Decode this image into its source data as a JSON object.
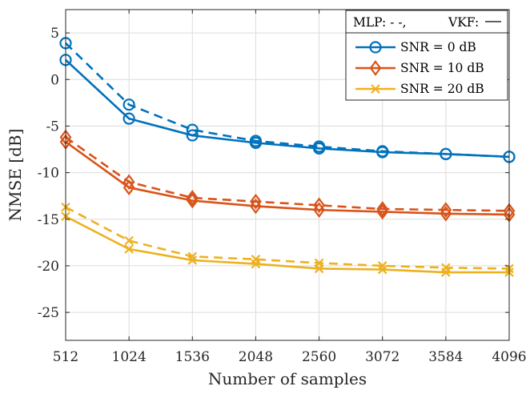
{
  "chart_data": {
    "type": "line",
    "xlabel": "Number of samples",
    "ylabel": "NMSE [dB]",
    "x": [
      512,
      1024,
      1536,
      2048,
      2560,
      3072,
      3584,
      4096
    ],
    "x_tick_labels": [
      "512",
      "1024",
      "1536",
      "2048",
      "2560",
      "3072",
      "3584",
      "4096"
    ],
    "y_ticks": [
      5,
      0,
      -5,
      -10,
      -15,
      -20,
      -25
    ],
    "y_tick_labels": [
      "5",
      "0",
      "-5",
      "-10",
      "-15",
      "-20",
      "-25"
    ],
    "xlim": [
      512,
      4096
    ],
    "ylim": [
      -28,
      7.5
    ],
    "grid": true,
    "legend": {
      "placement": "top-right",
      "header_mlp": "MLP: - -,",
      "header_vkf": "VKF:",
      "entries": [
        "SNR = 0 dB",
        "SNR = 10 dB",
        "SNR = 20 dB"
      ]
    },
    "series": [
      {
        "name": "SNR = 0 dB",
        "method": "MLP",
        "style": "dashed",
        "marker": "circle",
        "color": "#0072BD",
        "values": [
          3.9,
          -2.7,
          -5.4,
          -6.6,
          -7.2,
          -7.7,
          -8.0,
          -8.3
        ]
      },
      {
        "name": "SNR = 0 dB",
        "method": "VKF",
        "style": "solid",
        "marker": "circle",
        "color": "#0072BD",
        "values": [
          2.1,
          -4.2,
          -6.0,
          -6.8,
          -7.4,
          -7.8,
          -8.0,
          -8.3
        ]
      },
      {
        "name": "SNR = 10 dB",
        "method": "MLP",
        "style": "dashed",
        "marker": "diamond",
        "color": "#D95319",
        "values": [
          -6.2,
          -11.0,
          -12.7,
          -13.1,
          -13.5,
          -13.9,
          -14.0,
          -14.1
        ]
      },
      {
        "name": "SNR = 10 dB",
        "method": "VKF",
        "style": "solid",
        "marker": "diamond",
        "color": "#D95319",
        "values": [
          -6.7,
          -11.6,
          -13.0,
          -13.6,
          -14.0,
          -14.2,
          -14.4,
          -14.5
        ]
      },
      {
        "name": "SNR = 20 dB",
        "method": "MLP",
        "style": "dashed",
        "marker": "x",
        "color": "#EDB120",
        "values": [
          -13.7,
          -17.3,
          -19.0,
          -19.3,
          -19.7,
          -20.0,
          -20.2,
          -20.3
        ]
      },
      {
        "name": "SNR = 20 dB",
        "method": "VKF",
        "style": "solid",
        "marker": "x",
        "color": "#EDB120",
        "values": [
          -14.7,
          -18.2,
          -19.4,
          -19.8,
          -20.3,
          -20.4,
          -20.7,
          -20.7
        ]
      }
    ]
  }
}
